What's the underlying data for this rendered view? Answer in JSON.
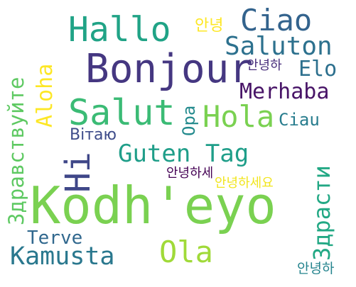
{
  "cloud": {
    "words": [
      {
        "text": "Kodh'eyo",
        "color": "#7ad151"
      },
      {
        "text": "Bonjour",
        "color": "#453781"
      },
      {
        "text": "Salut",
        "color": "#3bbb75"
      },
      {
        "text": "Hallo",
        "color": "#20a386"
      },
      {
        "text": "Ciao",
        "color": "#33638d"
      },
      {
        "text": "Saluton",
        "color": "#2d718e"
      },
      {
        "text": "Hola",
        "color": "#7ad151"
      },
      {
        "text": "Guten Tag",
        "color": "#1f9e89"
      },
      {
        "text": "Hi",
        "color": "#3f4788"
      },
      {
        "text": "Merhaba",
        "color": "#481467"
      },
      {
        "text": "Elo",
        "color": "#2d708e"
      },
      {
        "text": "Ciau",
        "color": "#287d8e"
      },
      {
        "text": "Opa",
        "color": "#238a8d"
      },
      {
        "text": "Вітаю",
        "color": "#3e4c8a"
      },
      {
        "text": "Aloha",
        "color": "#fde725"
      },
      {
        "text": "Здравствуйте",
        "color": "#5ec962"
      },
      {
        "text": "Здрасти",
        "color": "#22a884"
      },
      {
        "text": "Ola",
        "color": "#a0da39"
      },
      {
        "text": "Kamusta",
        "color": "#2a788e"
      },
      {
        "text": "Terve",
        "color": "#31688e"
      },
      {
        "text": "안녕",
        "color": "#fde725"
      },
      {
        "text": "안녕하",
        "color": "#472d7b"
      },
      {
        "text": "안녕하세",
        "color": "#440154"
      },
      {
        "text": "안녕하세요",
        "color": "#f1e51d"
      },
      {
        "text": "안녕하",
        "color": "#25848e"
      }
    ]
  }
}
